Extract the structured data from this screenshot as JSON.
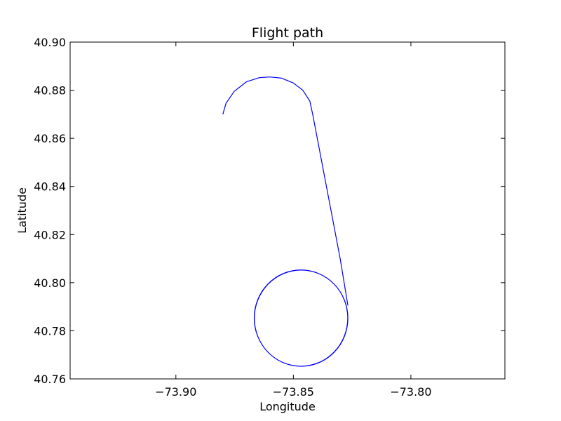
{
  "chart_data": {
    "type": "line",
    "title": "Flight path",
    "xlabel": "Longitude",
    "ylabel": "Latitude",
    "xlim": [
      -73.945,
      -73.76
    ],
    "ylim": [
      40.76,
      40.9
    ],
    "xticks": [
      -73.9,
      -73.85,
      -73.8
    ],
    "xtick_labels": [
      "−73.90",
      "−73.85",
      "−73.80"
    ],
    "yticks": [
      40.76,
      40.78,
      40.8,
      40.82,
      40.84,
      40.86,
      40.88,
      40.9
    ],
    "ytick_labels": [
      "40.76",
      "40.78",
      "40.80",
      "40.82",
      "40.84",
      "40.86",
      "40.88",
      "40.90"
    ],
    "grid": false,
    "line_color": "#0000ff",
    "series": [
      {
        "x": [
          -73.88,
          -73.8787,
          -73.8752,
          -73.87,
          -73.8645,
          -73.86,
          -73.855,
          -73.85,
          -73.846,
          -73.843,
          -73.8418,
          -73.8301,
          -73.8268
        ],
        "y": [
          40.87,
          40.8745,
          40.8795,
          40.8835,
          40.8852,
          40.8855,
          40.885,
          40.883,
          40.88,
          40.8755,
          40.87,
          40.81,
          40.7905
        ]
      },
      {
        "circle": true,
        "center": [
          -73.8468,
          40.7853
        ],
        "radius_x": 0.0199,
        "radius_y": 0.02,
        "traversals": 2
      }
    ]
  }
}
